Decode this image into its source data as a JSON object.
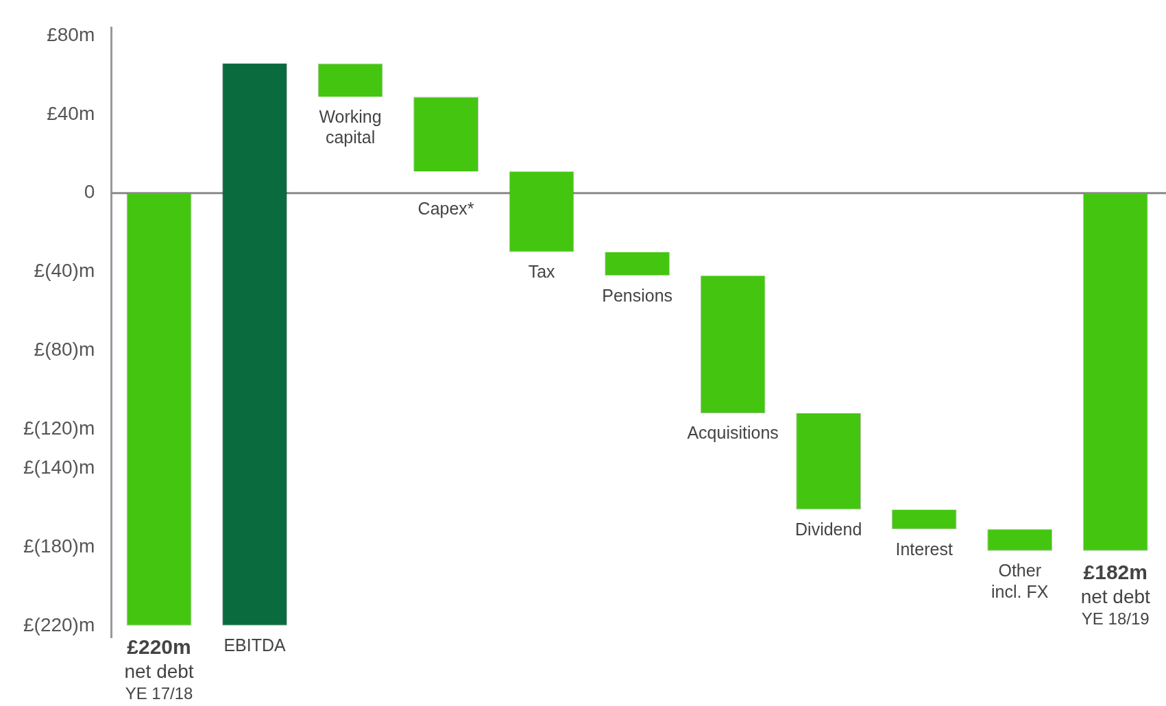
{
  "chart_data": {
    "type": "bar",
    "categories": [
      "£220m\nnet debt\nYE 17/18",
      "EBITDA",
      "Working\ncapital",
      "Capex*",
      "Tax",
      "Pensions",
      "Acquisitions",
      "Dividend",
      "Interest",
      "Other\nincl. FX",
      "£182m\nnet debt\nYE 18/19"
    ],
    "base": [
      0,
      -220,
      66,
      49,
      11,
      -30,
      -42,
      -112,
      -161,
      -171,
      0
    ],
    "values": [
      -220,
      286,
      -17,
      -38,
      -41,
      -12,
      -70,
      -49,
      -10,
      -11,
      -182
    ],
    "colors": [
      "#44c610",
      "#0a6b3e",
      "#44c610",
      "#44c610",
      "#44c610",
      "#44c610",
      "#44c610",
      "#44c610",
      "#44c610",
      "#44c610",
      "#44c610"
    ],
    "ylim": [
      -226,
      84
    ],
    "yticks": [
      {
        "value": 80,
        "label": "£80m"
      },
      {
        "value": 40,
        "label": "£40m"
      },
      0,
      {
        "value": -40,
        "label": "£(40)m"
      },
      {
        "value": -80,
        "label": "£(80)m"
      },
      {
        "value": -120,
        "label": "£(120)m"
      },
      {
        "value": -140,
        "label": "£(140)m"
      },
      {
        "value": -180,
        "label": "£(180)m"
      },
      {
        "value": -220,
        "label": "£(220)m"
      }
    ],
    "ref_lines": [
      {
        "axis": "y",
        "value": 0,
        "color": "#8a8a8a"
      }
    ],
    "tick_labels": "y",
    "grid": false,
    "legend": false
  }
}
